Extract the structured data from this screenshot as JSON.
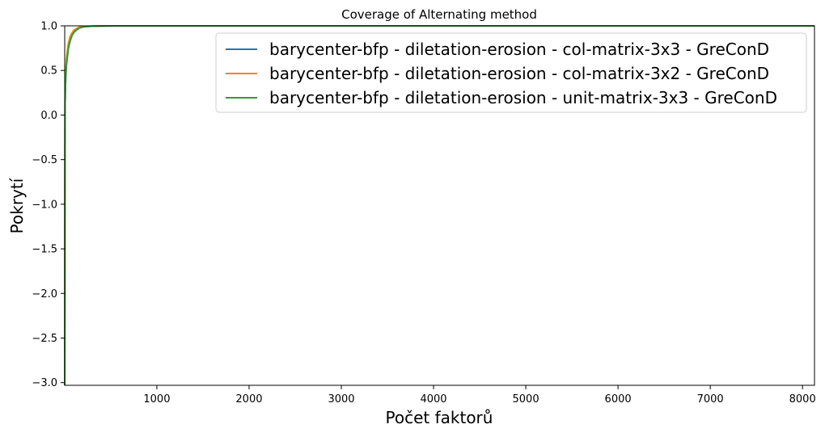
{
  "chart_data": {
    "type": "line",
    "title": "Coverage of Alternating method",
    "xlabel": "Počet faktorů",
    "ylabel": "Pokrytí",
    "xlim": [
      1,
      8130
    ],
    "ylim": [
      -3.03,
      1.0
    ],
    "x_ticks": [
      1000,
      2000,
      3000,
      4000,
      5000,
      6000,
      7000,
      8000
    ],
    "x_tick_labels": [
      "1000",
      "2000",
      "3000",
      "4000",
      "5000",
      "6000",
      "7000",
      "8000"
    ],
    "y_ticks": [
      1.0,
      0.5,
      0.0,
      -0.5,
      -1.0,
      -1.5,
      -2.0,
      -2.5,
      -3.0
    ],
    "y_tick_labels": [
      "1.0",
      "0.5",
      "0.0",
      "−0.5",
      "−1.0",
      "−1.5",
      "−2.0",
      "−2.5",
      "−3.0"
    ],
    "grid": false,
    "legend_position": "top-right",
    "series": [
      {
        "name": "barycenter-bfp - diletation-erosion - col-matrix-3x3 - GreConD",
        "color": "#1f77b4",
        "x": [
          1,
          5,
          10,
          20,
          40,
          60,
          80,
          100,
          130,
          160,
          200,
          300,
          500,
          1000,
          2000,
          4000,
          6000,
          8130
        ],
        "y": [
          -3.03,
          0.15,
          0.38,
          0.6,
          0.78,
          0.86,
          0.91,
          0.94,
          0.965,
          0.98,
          0.99,
          0.997,
          1.0,
          1.0,
          1.0,
          1.0,
          1.0,
          1.0
        ]
      },
      {
        "name": "barycenter-bfp - diletation-erosion - col-matrix-3x2 - GreConD",
        "color": "#ff7f0e",
        "x": [
          1,
          5,
          10,
          20,
          40,
          60,
          80,
          100,
          130,
          160,
          200,
          300,
          500,
          1000,
          2000,
          4000,
          6000,
          8130
        ],
        "y": [
          -3.03,
          0.2,
          0.42,
          0.63,
          0.8,
          0.88,
          0.92,
          0.95,
          0.97,
          0.985,
          0.992,
          0.998,
          1.0,
          1.0,
          1.0,
          1.0,
          1.0,
          1.0
        ]
      },
      {
        "name": "barycenter-bfp - diletation-erosion - unit-matrix-3x3 - GreConD",
        "color": "#2ca02c",
        "x": [
          1,
          5,
          10,
          20,
          40,
          60,
          80,
          100,
          130,
          160,
          200,
          300,
          500,
          1000,
          2000,
          4000,
          6000,
          8130
        ],
        "y": [
          -3.03,
          0.1,
          0.34,
          0.56,
          0.74,
          0.83,
          0.89,
          0.925,
          0.955,
          0.975,
          0.987,
          0.996,
          1.0,
          1.0,
          1.0,
          1.0,
          1.0,
          1.0
        ]
      }
    ]
  }
}
